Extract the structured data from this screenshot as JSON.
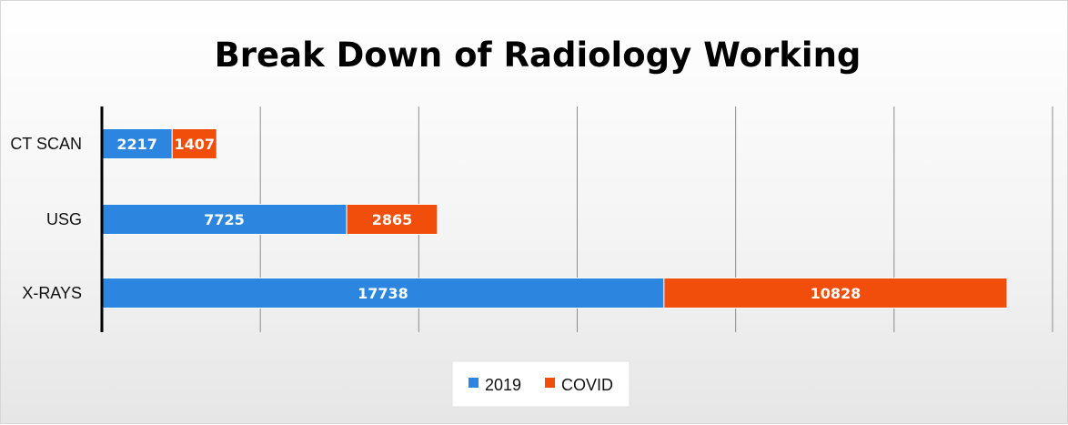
{
  "chart_data": {
    "type": "bar",
    "orientation": "horizontal",
    "stacked": true,
    "title": "Break Down of Radiology Working",
    "categories": [
      "CT SCAN",
      "USG",
      "X-RAYS"
    ],
    "series": [
      {
        "name": "2019",
        "values": [
          2217,
          7725,
          17738
        ],
        "color": "#2C86E0"
      },
      {
        "name": "COVID",
        "values": [
          1407,
          2865,
          10828
        ],
        "color": "#F04E0A"
      }
    ],
    "xlim": [
      0,
      30000
    ],
    "grid": true,
    "legend_position": "bottom"
  }
}
